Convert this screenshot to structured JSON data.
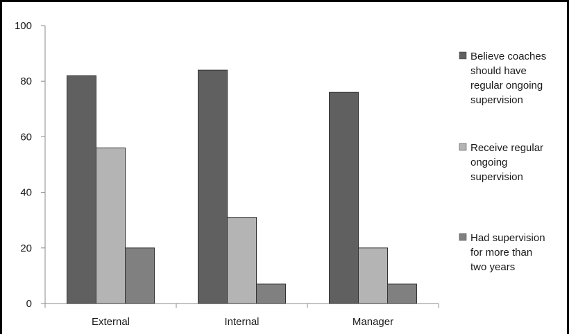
{
  "chart_data": {
    "type": "bar",
    "categories": [
      "External",
      "Internal",
      "Manager"
    ],
    "series": [
      {
        "name": "Believe coaches should have regular ongoing supervision",
        "values": [
          82,
          84,
          76
        ],
        "color": "#606060",
        "legend_lines": [
          "Believe coaches",
          "should have",
          "regular ongoing",
          "supervision"
        ]
      },
      {
        "name": "Receive regular ongoing supervision",
        "values": [
          56,
          31,
          20
        ],
        "color": "#b4b4b4",
        "legend_lines": [
          "Receive regular",
          "ongoing",
          "supervision"
        ]
      },
      {
        "name": "Had supervision for more than two years",
        "values": [
          20,
          7,
          7
        ],
        "color": "#808080",
        "legend_lines": [
          "Had supervision",
          "for more than",
          "two years"
        ]
      }
    ],
    "ylim": [
      0,
      100
    ],
    "yticks": [
      0,
      20,
      40,
      60,
      80,
      100
    ],
    "grid": false,
    "legend_position": "right",
    "title": "",
    "xlabel": "",
    "ylabel": ""
  }
}
